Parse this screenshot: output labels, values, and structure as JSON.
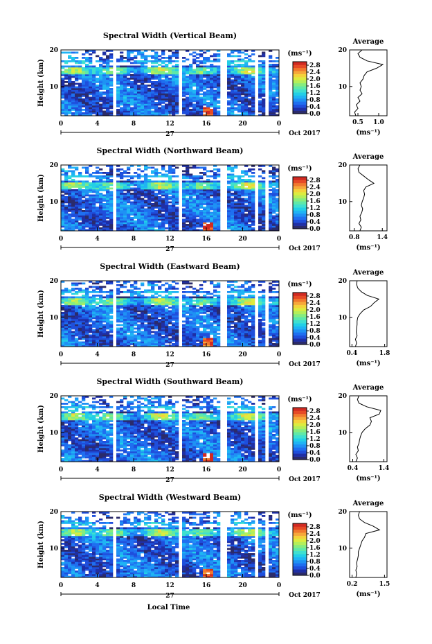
{
  "figure": {
    "xlabel": "Local Time",
    "date_label": "27",
    "month_label": "Oct 2017"
  },
  "colorbar": {
    "unit": "(ms⁻¹)",
    "ticks": [
      "2.8",
      "2.4",
      "2.0",
      "1.6",
      "1.2",
      "0.8",
      "0.4",
      "0.0"
    ],
    "colors": [
      "#2b2b6b",
      "#1f2fa6",
      "#1f4fdc",
      "#1f6ff0",
      "#1f92f4",
      "#1fb4f4",
      "#22cfe6",
      "#3fe0cf",
      "#5fe8a8",
      "#86ec7f",
      "#b4ee5a",
      "#dcec3f",
      "#f4d23a",
      "#f6a83a",
      "#f1792e",
      "#e64a26",
      "#d12a22"
    ]
  },
  "chart_data": [
    {
      "type": "heatmap",
      "title": "Spectral Width (Vertical Beam)",
      "ylabel": "Height (km)",
      "x_ticks": [
        "0",
        "4",
        "8",
        "12",
        "16",
        "20",
        "0"
      ],
      "x_range": [
        0,
        24
      ],
      "y_ticks": [
        "10",
        "20"
      ],
      "y_range": [
        2,
        20
      ],
      "value_range": [
        0,
        3
      ],
      "avg_profile": {
        "title": "Average",
        "xlabel": "(ms⁻¹)",
        "x_ticks": [
          "0.5",
          "1.0"
        ],
        "x_range": [
          0.3,
          1.2
        ],
        "y_ticks": [
          "10",
          "20"
        ],
        "heights": [
          2,
          3,
          4,
          5,
          6,
          7,
          8,
          9,
          10,
          11,
          12,
          13,
          14,
          15,
          16,
          17,
          18,
          19,
          20
        ],
        "values": [
          0.45,
          0.42,
          0.5,
          0.46,
          0.55,
          0.5,
          0.6,
          0.55,
          0.58,
          0.55,
          0.62,
          0.65,
          0.72,
          0.95,
          1.1,
          0.72,
          0.55,
          0.5,
          0.6
        ]
      }
    },
    {
      "type": "heatmap",
      "title": "Spectral Width (Northward Beam)",
      "ylabel": "Height (km)",
      "x_ticks": [
        "0",
        "4",
        "8",
        "12",
        "16",
        "20",
        "0"
      ],
      "x_range": [
        0,
        24
      ],
      "y_ticks": [
        "10",
        "20"
      ],
      "y_range": [
        2,
        20
      ],
      "value_range": [
        0,
        3
      ],
      "avg_profile": {
        "title": "Average",
        "xlabel": "(ms⁻¹)",
        "x_ticks": [
          "0.8",
          "1.4"
        ],
        "x_range": [
          0.7,
          1.5
        ],
        "y_ticks": [
          "10",
          "20"
        ],
        "heights": [
          2,
          3,
          4,
          5,
          6,
          7,
          8,
          9,
          10,
          11,
          12,
          13,
          14,
          15,
          16,
          17,
          18,
          19,
          20
        ],
        "values": [
          0.92,
          0.95,
          0.9,
          0.94,
          0.92,
          0.96,
          0.98,
          0.95,
          0.97,
          1.0,
          1.02,
          1.0,
          1.05,
          1.22,
          1.1,
          1.0,
          0.9,
          0.88,
          0.92
        ]
      }
    },
    {
      "type": "heatmap",
      "title": "Spectral Width (Eastward Beam)",
      "ylabel": "Height (km)",
      "x_ticks": [
        "0",
        "4",
        "8",
        "12",
        "16",
        "20",
        "0"
      ],
      "x_range": [
        0,
        24
      ],
      "y_ticks": [
        "10",
        "20"
      ],
      "y_range": [
        2,
        20
      ],
      "value_range": [
        0,
        3
      ],
      "avg_profile": {
        "title": "Average",
        "xlabel": "(ms⁻¹)",
        "x_ticks": [
          "0.4",
          "1.8"
        ],
        "x_range": [
          0.3,
          1.9
        ],
        "y_ticks": [
          "10",
          "20"
        ],
        "heights": [
          2,
          3,
          4,
          5,
          6,
          7,
          8,
          9,
          10,
          11,
          12,
          13,
          14,
          15,
          16,
          17,
          18,
          19,
          20
        ],
        "values": [
          0.55,
          0.6,
          0.55,
          0.62,
          0.58,
          0.6,
          0.62,
          0.62,
          0.65,
          0.75,
          0.9,
          1.2,
          1.35,
          1.55,
          1.05,
          0.8,
          0.65,
          0.6,
          0.62
        ]
      }
    },
    {
      "type": "heatmap",
      "title": "Spectral Width (Southward Beam)",
      "ylabel": "Height (km)",
      "x_ticks": [
        "0",
        "4",
        "8",
        "12",
        "16",
        "20",
        "0"
      ],
      "x_range": [
        0,
        24
      ],
      "y_ticks": [
        "10",
        "20"
      ],
      "y_range": [
        2,
        20
      ],
      "value_range": [
        0,
        3
      ],
      "avg_profile": {
        "title": "Average",
        "xlabel": "(ms⁻¹)",
        "x_ticks": [
          "0.4",
          "1.4"
        ],
        "x_range": [
          0.3,
          1.5
        ],
        "y_ticks": [
          "10",
          "20"
        ],
        "heights": [
          2,
          3,
          4,
          5,
          6,
          7,
          8,
          9,
          10,
          11,
          12,
          13,
          14,
          15,
          16,
          17,
          18,
          19,
          20
        ],
        "values": [
          0.5,
          0.55,
          0.5,
          0.58,
          0.55,
          0.6,
          0.62,
          0.65,
          0.7,
          0.8,
          0.95,
          1.0,
          0.95,
          1.25,
          1.3,
          0.85,
          0.6,
          0.55,
          0.6
        ]
      }
    },
    {
      "type": "heatmap",
      "title": "Spectral Width (Westward Beam)",
      "ylabel": "Height (km)",
      "x_ticks": [
        "0",
        "4",
        "8",
        "12",
        "16",
        "20",
        "0"
      ],
      "x_range": [
        0,
        24
      ],
      "y_ticks": [
        "10",
        "20"
      ],
      "y_range": [
        2,
        20
      ],
      "value_range": [
        0,
        3
      ],
      "avg_profile": {
        "title": "Average",
        "xlabel": "(ms⁻¹)",
        "x_ticks": [
          "0.2",
          "1.5"
        ],
        "x_range": [
          0.1,
          1.6
        ],
        "y_ticks": [
          "10",
          "20"
        ],
        "heights": [
          2,
          3,
          4,
          5,
          6,
          7,
          8,
          9,
          10,
          11,
          12,
          13,
          14,
          15,
          16,
          17,
          18,
          19,
          20
        ],
        "values": [
          0.35,
          0.38,
          0.35,
          0.4,
          0.38,
          0.42,
          0.45,
          0.45,
          0.5,
          0.55,
          0.6,
          0.7,
          0.75,
          1.3,
          1.05,
          0.7,
          0.5,
          0.45,
          0.5
        ]
      }
    }
  ]
}
